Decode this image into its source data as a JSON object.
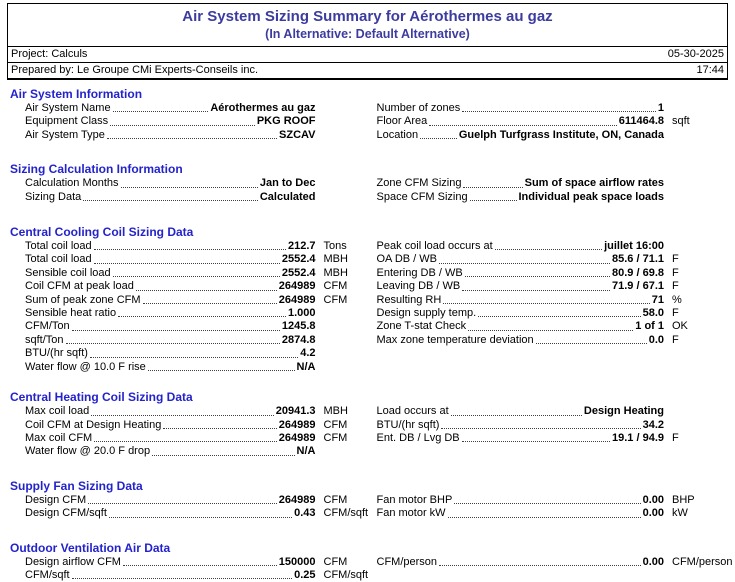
{
  "colors": {
    "title_blue": "#3c3ca0",
    "heading_blue": "#2323cc",
    "leader_dots": "#404040"
  },
  "header": {
    "title": "Air System Sizing Summary for Aérothermes au gaz",
    "subtitle": "(In Alternative: Default Alternative)",
    "project": "Project: Calculs",
    "date": "05-30-2025",
    "prepared_by": "Prepared by: Le Groupe CMi Experts-Conseils inc.",
    "time": "17:44"
  },
  "sections": [
    {
      "title": "Air System Information",
      "left": [
        {
          "label": "Air System Name",
          "value": "Aérothermes au gaz",
          "unit": ""
        },
        {
          "label": "Equipment Class",
          "value": "PKG ROOF",
          "unit": ""
        },
        {
          "label": "Air System Type",
          "value": "SZCAV",
          "unit": ""
        }
      ],
      "right": [
        {
          "label": "Number of zones",
          "value": "1",
          "unit": ""
        },
        {
          "label": "Floor Area",
          "value": "611464.8",
          "unit": "sqft"
        },
        {
          "label": "Location",
          "value": "Guelph Turfgrass Institute, ON, Canada",
          "unit": ""
        }
      ]
    },
    {
      "title": "Sizing Calculation Information",
      "left": [
        {
          "label": "Calculation Months",
          "value": "Jan to Dec",
          "unit": ""
        },
        {
          "label": "Sizing Data",
          "value": "Calculated",
          "unit": ""
        }
      ],
      "right": [
        {
          "label": "Zone CFM Sizing",
          "value": "Sum of space airflow rates",
          "unit": ""
        },
        {
          "label": "Space CFM Sizing",
          "value": "Individual peak space loads",
          "unit": ""
        }
      ]
    },
    {
      "title": "Central Cooling Coil Sizing Data",
      "left": [
        {
          "label": "Total coil load",
          "value": "212.7",
          "unit": "Tons"
        },
        {
          "label": "Total coil load",
          "value": "2552.4",
          "unit": "MBH"
        },
        {
          "label": "Sensible coil load",
          "value": "2552.4",
          "unit": "MBH"
        },
        {
          "label": "Coil CFM at peak load",
          "value": "264989",
          "unit": "CFM"
        },
        {
          "label": "Sum of peak zone CFM",
          "value": "264989",
          "unit": "CFM"
        },
        {
          "label": "Sensible heat ratio",
          "value": "1.000",
          "unit": ""
        },
        {
          "label": "CFM/Ton",
          "value": "1245.8",
          "unit": ""
        },
        {
          "label": "sqft/Ton",
          "value": "2874.8",
          "unit": ""
        },
        {
          "label": "BTU/(hr sqft)",
          "value": "4.2",
          "unit": ""
        },
        {
          "label": "Water flow @ 10.0 F rise",
          "value": "N/A",
          "unit": ""
        }
      ],
      "right": [
        {
          "label": "Peak coil load occurs at",
          "value": "juillet 16:00",
          "unit": ""
        },
        {
          "label": "OA DB / WB",
          "value": "85.6 / 71.1",
          "unit": "F"
        },
        {
          "label": "Entering DB / WB",
          "value": "80.9 / 69.8",
          "unit": "F"
        },
        {
          "label": "Leaving DB / WB",
          "value": "71.9 / 67.1",
          "unit": "F"
        },
        {
          "label": "Resulting RH",
          "value": "71",
          "unit": "%"
        },
        {
          "label": "Design supply temp.",
          "value": "58.0",
          "unit": "F"
        },
        {
          "label": "Zone T-stat Check",
          "value": "1 of 1",
          "unit": "OK"
        },
        {
          "label": "Max zone temperature deviation",
          "value": "0.0",
          "unit": "F"
        }
      ]
    },
    {
      "title": "Central Heating Coil Sizing Data",
      "left": [
        {
          "label": "Max coil load",
          "value": "20941.3",
          "unit": "MBH"
        },
        {
          "label": "Coil CFM at Design Heating",
          "value": "264989",
          "unit": "CFM"
        },
        {
          "label": "Max coil CFM",
          "value": "264989",
          "unit": "CFM"
        },
        {
          "label": "Water flow @ 20.0 F drop",
          "value": "N/A",
          "unit": ""
        }
      ],
      "right": [
        {
          "label": "Load occurs at",
          "value": "Design Heating",
          "unit": ""
        },
        {
          "label": "BTU/(hr sqft)",
          "value": "34.2",
          "unit": ""
        },
        {
          "label": "Ent. DB / Lvg DB",
          "value": "19.1 / 94.9",
          "unit": "F"
        }
      ]
    },
    {
      "title": "Supply Fan Sizing Data",
      "left": [
        {
          "label": "Design CFM",
          "value": "264989",
          "unit": "CFM"
        },
        {
          "label": "Design CFM/sqft",
          "value": "0.43",
          "unit": "CFM/sqft"
        }
      ],
      "right": [
        {
          "label": "Fan motor BHP",
          "value": "0.00",
          "unit": "BHP"
        },
        {
          "label": "Fan motor kW",
          "value": "0.00",
          "unit": "kW"
        }
      ]
    },
    {
      "title": "Outdoor Ventilation Air Data",
      "left": [
        {
          "label": "Design airflow CFM",
          "value": "150000",
          "unit": "CFM"
        },
        {
          "label": "CFM/sqft",
          "value": "0.25",
          "unit": "CFM/sqft"
        }
      ],
      "right": [
        {
          "label": "CFM/person",
          "value": "0.00",
          "unit": "CFM/person"
        }
      ]
    }
  ]
}
